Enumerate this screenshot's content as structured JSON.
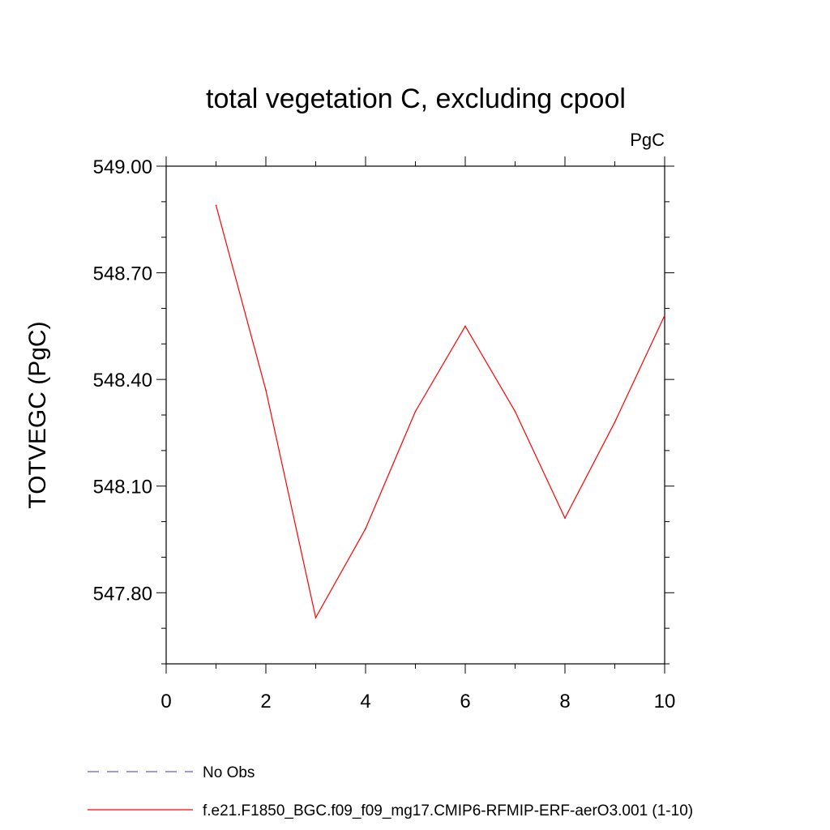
{
  "chart_data": {
    "type": "line",
    "title": "total vegetation C, excluding cpool",
    "units_label": "PgC",
    "xlabel": "",
    "ylabel": "TOTVEGC  (PgC)",
    "xlim": [
      0,
      10
    ],
    "ylim": [
      547.6,
      549.0
    ],
    "x_ticks": [
      0,
      2,
      4,
      6,
      8,
      10
    ],
    "x_tick_labels": [
      "0",
      "2",
      "4",
      "6",
      "8",
      "10"
    ],
    "y_ticks": [
      547.8,
      548.1,
      548.4,
      548.7,
      549.0
    ],
    "y_tick_labels": [
      "547.80",
      "548.10",
      "548.40",
      "548.70",
      "549.00"
    ],
    "x_minor_step": 1,
    "y_minor_step": 0.1,
    "grid": false,
    "legend_position": "bottom-left",
    "series": [
      {
        "name": "No Obs",
        "color": "#6a5acd",
        "dash": "dashed",
        "x": [],
        "values": []
      },
      {
        "name": "f.e21.F1850_BGC.f09_f09_mg17.CMIP6-RFMIP-ERF-aerO3.001 (1-10)",
        "color": "#ff0000",
        "dash": "solid",
        "x": [
          1,
          2,
          3,
          4,
          5,
          6,
          7,
          8,
          9,
          10
        ],
        "values": [
          548.89,
          548.37,
          547.73,
          547.98,
          548.31,
          548.55,
          548.31,
          548.01,
          548.28,
          548.58
        ]
      }
    ]
  }
}
